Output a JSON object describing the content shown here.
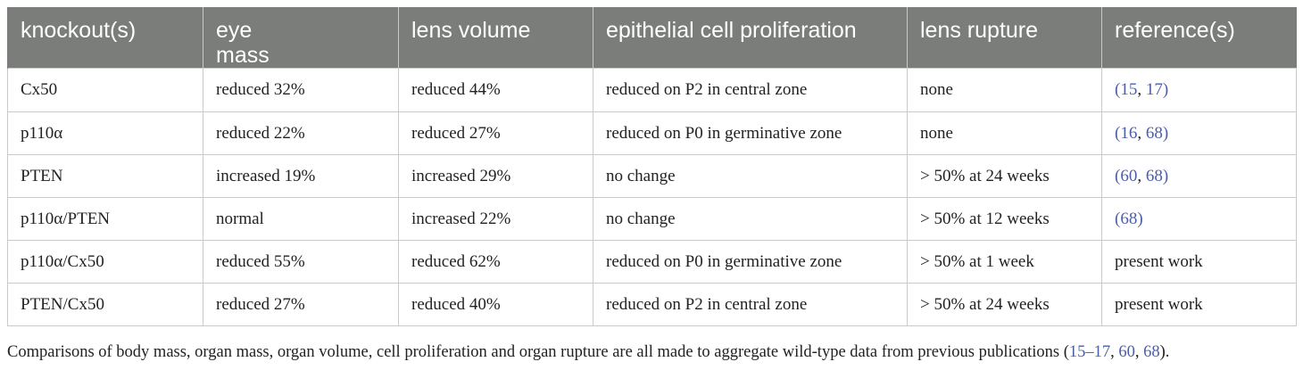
{
  "headers": [
    "knockout(s)",
    "eye\nmass",
    "lens volume",
    "epithelial cell proliferation",
    "lens rupture",
    "reference(s)"
  ],
  "rows": [
    {
      "knockout": "Cx50",
      "eye_mass": "reduced 32%",
      "lens_volume": "reduced 44%",
      "proliferation": "reduced on P2 in central zone",
      "rupture": "none",
      "reference": {
        "open": "(",
        "refs": [
          "15",
          "17"
        ],
        "close": ")",
        "text": ""
      }
    },
    {
      "knockout": "p110α",
      "eye_mass": "reduced 22%",
      "lens_volume": "reduced 27%",
      "proliferation": "reduced on P0 in germinative zone",
      "rupture": "none",
      "reference": {
        "open": "(",
        "refs": [
          "16",
          "68"
        ],
        "close": ")",
        "text": ""
      }
    },
    {
      "knockout": "PTEN",
      "eye_mass": "increased 19%",
      "lens_volume": "increased 29%",
      "proliferation": "no change",
      "rupture": "> 50% at 24 weeks",
      "reference": {
        "open": "(",
        "refs": [
          "60",
          "68"
        ],
        "close": ")",
        "text": ""
      }
    },
    {
      "knockout": "p110α/PTEN",
      "eye_mass": "normal",
      "lens_volume": "increased 22%",
      "proliferation": "no change",
      "rupture": "> 50% at 12 weeks",
      "reference": {
        "open": "(",
        "refs": [
          "68"
        ],
        "close": ")",
        "text": ""
      }
    },
    {
      "knockout": "p110α/Cx50",
      "eye_mass": "reduced 55%",
      "lens_volume": "reduced 62%",
      "proliferation": "reduced on P0 in germinative zone",
      "rupture": "> 50% at 1 week",
      "reference": {
        "open": "",
        "refs": [],
        "close": "",
        "text": "present work"
      }
    },
    {
      "knockout": "PTEN/Cx50",
      "eye_mass": "reduced 27%",
      "lens_volume": "reduced 40%",
      "proliferation": "reduced on P2 in central zone",
      "rupture": "> 50% at 24 weeks",
      "reference": {
        "open": "",
        "refs": [],
        "close": "",
        "text": "present work"
      }
    }
  ],
  "footnote": {
    "text": "Comparisons of body mass, organ mass, organ volume, cell proliferation and organ rupture are all made to aggregate wild-type data from previous publications (",
    "refs": [
      "15–17",
      "60",
      "68"
    ],
    "close": ")."
  },
  "colors": {
    "header_bg": "#7b7d7a",
    "header_text": "#ffffff",
    "link": "#4b5ea8",
    "border": "#c9c9c9"
  }
}
